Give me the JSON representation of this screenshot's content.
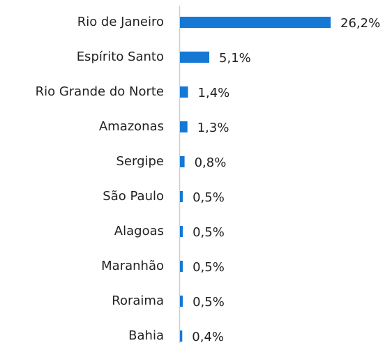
{
  "chart_data": {
    "type": "hbar",
    "categories": [
      "Rio de Janeiro",
      "Espírito Santo",
      "Rio Grande do Norte",
      "Amazonas",
      "Sergipe",
      "São Paulo",
      "Alagoas",
      "Maranhão",
      "Roraima",
      "Bahia"
    ],
    "values": [
      26.2,
      5.1,
      1.4,
      1.3,
      0.8,
      0.5,
      0.5,
      0.5,
      0.5,
      0.4
    ],
    "value_labels": [
      "26,2%",
      "5,1%",
      "1,4%",
      "1,3%",
      "0,8%",
      "0,5%",
      "0,5%",
      "0,5%",
      "0,5%",
      "0,4%"
    ],
    "color": "#1478d4"
  }
}
